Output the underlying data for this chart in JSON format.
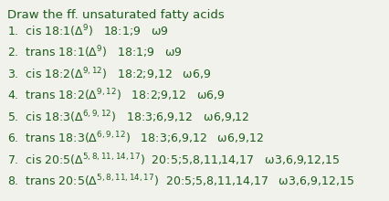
{
  "title": "Draw the ff. unsaturated fatty acids",
  "bg_color": "#f2f2ec",
  "text_color": "#1a5c1a",
  "font_size": 9.0,
  "title_font_size": 9.5,
  "line_data": [
    [
      "1.",
      "cis 18:1(",
      "9",
      ")   18:1;9",
      "   ω9"
    ],
    [
      "2.",
      "trans 18:1(",
      "9",
      ")   18:1;9",
      "   ω9"
    ],
    [
      "3.",
      "cis 18:2(",
      "9,12",
      ")   18:2;9,12",
      "   ω6,9"
    ],
    [
      "4.",
      "trans 18:2(",
      "9,12",
      ")   18:2;9,12",
      "   ω6,9"
    ],
    [
      "5.",
      "cis 18:3(",
      "6,9,12",
      ")   18:3;6,9,12",
      "   ω6,9,12"
    ],
    [
      "6.",
      "trans 18:3(",
      "6,9,12",
      ")   18:3;6,9,12",
      "   ω6,9,12"
    ],
    [
      "7.",
      "cis 20:5(",
      "5,8,11,14,17",
      ")  20:5;5,8,11,14,17",
      "   ω3,6,9,12,15"
    ],
    [
      "8.",
      "trans 20:5(",
      "5,8,11,14,17",
      ")  20:5;5,8,11,14,17",
      "   ω3,6,9,12,15"
    ]
  ]
}
